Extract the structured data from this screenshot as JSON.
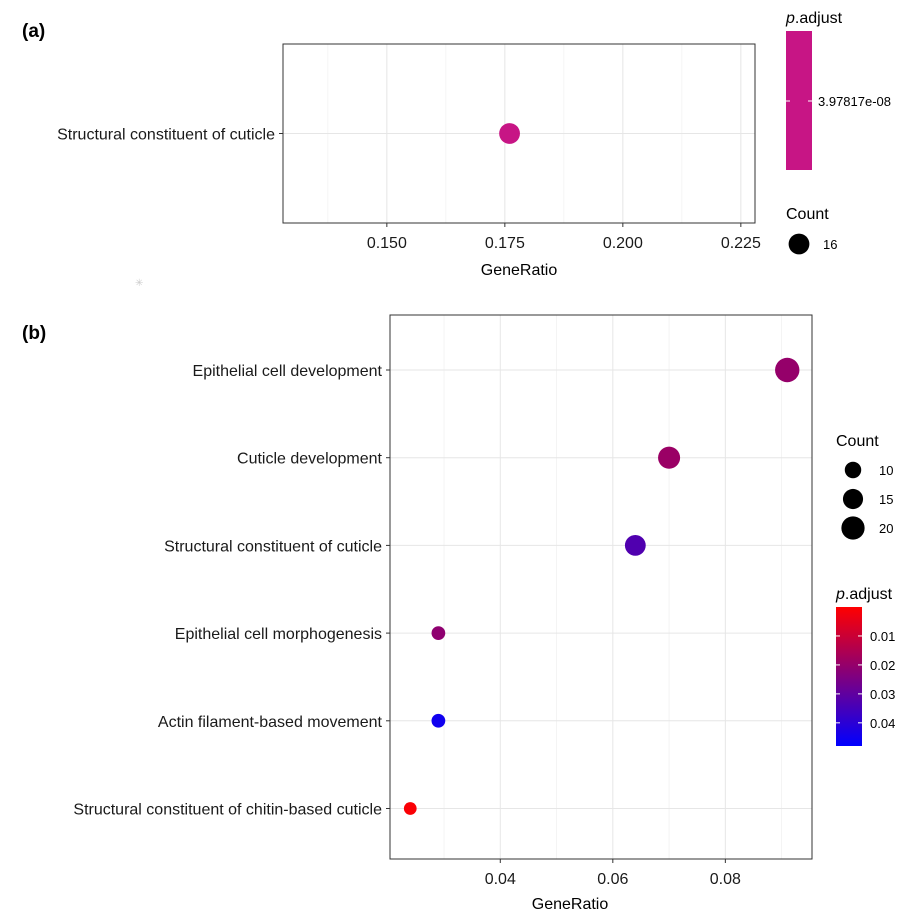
{
  "chart_data": [
    {
      "panel_label": "(a)",
      "type": "scatter",
      "xlabel": "GeneRatio",
      "xlim": [
        0.128,
        0.228
      ],
      "x_ticks": [
        0.15,
        0.175,
        0.2,
        0.225
      ],
      "x_tick_labels": [
        "0.150",
        "0.175",
        "0.200",
        "0.225"
      ],
      "categories": [
        "Structural constituent of cuticle"
      ],
      "points": [
        {
          "term": "Structural constituent of cuticle",
          "gene_ratio": 0.176,
          "count": 16,
          "p_adjust": 3.97817e-08
        }
      ],
      "grid": true,
      "legend": {
        "placement": "right",
        "color_title_italic": "p",
        "color_title_rest": ".adjust",
        "color_tick_labels": [
          "3.97817e-08"
        ],
        "size_title": "Count",
        "size_values": [
          16
        ],
        "size_labels": [
          "16"
        ],
        "color_hex": "#c71585"
      }
    },
    {
      "panel_label": "(b)",
      "type": "scatter",
      "xlabel": "GeneRatio",
      "xlim": [
        0.0204,
        0.0954
      ],
      "x_ticks": [
        0.04,
        0.06,
        0.08
      ],
      "x_tick_labels": [
        "0.04",
        "0.06",
        "0.08"
      ],
      "categories": [
        "Epithelial cell development",
        "Cuticle development",
        "Structural constituent of cuticle",
        "Epithelial cell morphogenesis",
        "Actin filament-based movement",
        "Structural constituent of chitin-based cuticle"
      ],
      "points": [
        {
          "term": "Epithelial cell development",
          "gene_ratio": 0.091,
          "count": 22,
          "p_adjust": 0.02
        },
        {
          "term": "Cuticle development",
          "gene_ratio": 0.07,
          "count": 18,
          "p_adjust": 0.019
        },
        {
          "term": "Structural constituent of cuticle",
          "gene_ratio": 0.064,
          "count": 16,
          "p_adjust": 0.033
        },
        {
          "term": "Epithelial cell morphogenesis",
          "gene_ratio": 0.029,
          "count": 7,
          "p_adjust": 0.021
        },
        {
          "term": "Actin filament-based movement",
          "gene_ratio": 0.029,
          "count": 7,
          "p_adjust": 0.045
        },
        {
          "term": "Structural constituent of chitin-based cuticle",
          "gene_ratio": 0.024,
          "count": 6,
          "p_adjust": 0.001
        }
      ],
      "grid": true,
      "legend": {
        "placement": "right",
        "size_title": "Count",
        "size_values": [
          10,
          15,
          20
        ],
        "size_labels": [
          "10",
          "15",
          "20"
        ],
        "color_title_italic": "p",
        "color_title_rest": ".adjust",
        "color_range": [
          0.0,
          0.048
        ],
        "color_ticks": [
          0.01,
          0.02,
          0.03,
          0.04
        ],
        "color_tick_labels": [
          "0.01",
          "0.02",
          "0.03",
          "0.04"
        ],
        "color_low_hex": "#ff0000",
        "color_high_hex": "#0000ff"
      }
    }
  ]
}
